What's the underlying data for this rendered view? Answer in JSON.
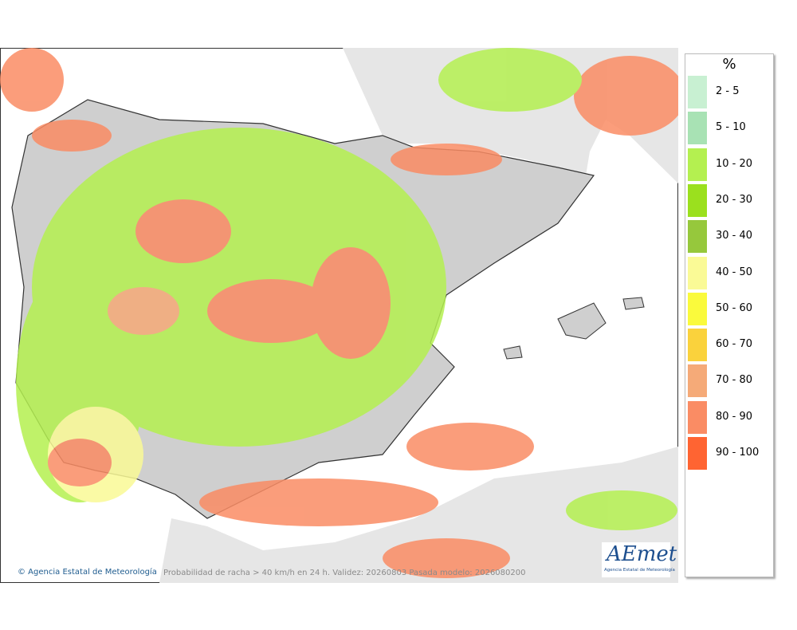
{
  "legend": {
    "title": "%",
    "items": [
      {
        "label": "2 - 5",
        "color": "#c8f0d2"
      },
      {
        "label": "5 - 10",
        "color": "#a8e2b4"
      },
      {
        "label": "10 - 20",
        "color": "#b4f050"
      },
      {
        "label": "20 - 30",
        "color": "#9be01e"
      },
      {
        "label": "30 - 40",
        "color": "#96c83c"
      },
      {
        "label": "40 - 50",
        "color": "#fafa96"
      },
      {
        "label": "50 - 60",
        "color": "#fafa3c"
      },
      {
        "label": "60 - 70",
        "color": "#fad23c"
      },
      {
        "label": "70 - 80",
        "color": "#f5aa78"
      },
      {
        "label": "80 - 90",
        "color": "#fa8c64"
      },
      {
        "label": "90 - 100",
        "color": "#ff6432"
      }
    ]
  },
  "footer": {
    "credit": "© Agencia Estatal de Meteorología",
    "caption": "Probabilidad de racha > 40 km/h en 24 h. Validez: 20260803 Pasada modelo: 2026080200"
  },
  "logo": {
    "word": "AEmet",
    "subtitle": "Agencia Estatal de Meteorología"
  }
}
